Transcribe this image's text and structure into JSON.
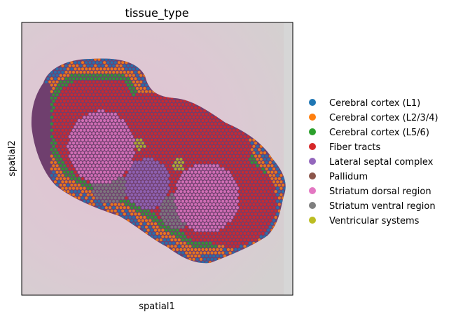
{
  "chart_data": {
    "type": "scatter",
    "title": "tissue_type",
    "xlabel": "spatial1",
    "ylabel": "spatial2",
    "legend_position": "right",
    "grid": false,
    "background": "H&E stained brain tissue section image",
    "series": [
      {
        "name": "Cerebral cortex (L1)",
        "color": "#1f77b4"
      },
      {
        "name": "Cerebral cortex (L2/3/4)",
        "color": "#ff7f0e"
      },
      {
        "name": "Cerebral cortex (L5/6)",
        "color": "#2ca02c"
      },
      {
        "name": "Fiber tracts",
        "color": "#d62728"
      },
      {
        "name": "Lateral septal complex",
        "color": "#9467bd"
      },
      {
        "name": "Pallidum",
        "color": "#8c564b"
      },
      {
        "name": "Striatum dorsal region",
        "color": "#e377c2"
      },
      {
        "name": "Striatum ventral region",
        "color": "#7f7f7f"
      },
      {
        "name": "Ventricular systems",
        "color": "#bcbd22"
      }
    ]
  }
}
